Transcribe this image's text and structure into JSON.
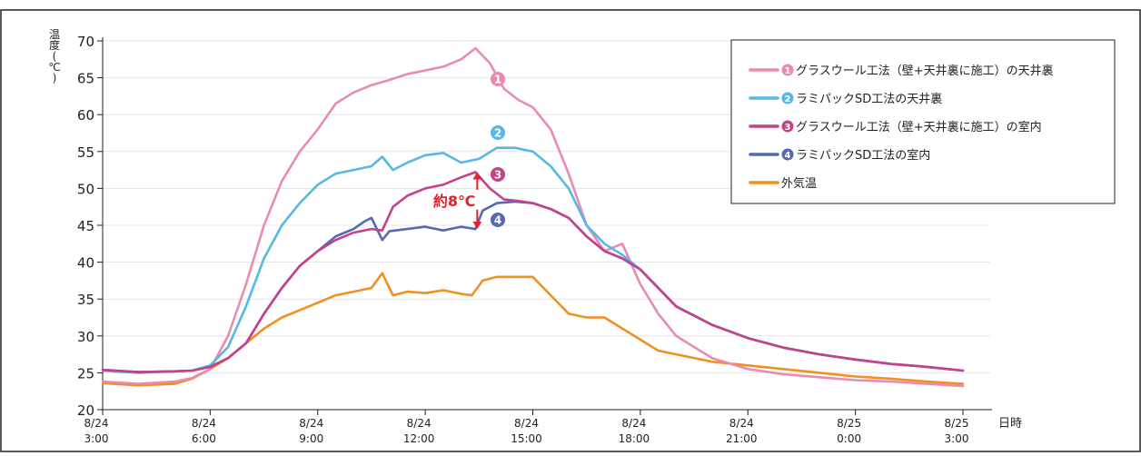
{
  "chart_data": {
    "type": "line",
    "ylabel_chars": [
      "温",
      "度",
      "(",
      "℃",
      ")"
    ],
    "xlabel": "日時",
    "ylim": [
      20,
      70
    ],
    "yticks": [
      20,
      25,
      30,
      35,
      40,
      45,
      50,
      55,
      60,
      65,
      70
    ],
    "xlim": [
      0,
      24
    ],
    "xticks": [
      {
        "x": 0,
        "date": "8/24",
        "time": "3:00"
      },
      {
        "x": 3,
        "date": "8/24",
        "time": "6:00"
      },
      {
        "x": 6,
        "date": "8/24",
        "time": "9:00"
      },
      {
        "x": 9,
        "date": "8/24",
        "time": "12:00"
      },
      {
        "x": 12,
        "date": "8/24",
        "time": "15:00"
      },
      {
        "x": 15,
        "date": "8/24",
        "time": "18:00"
      },
      {
        "x": 18,
        "date": "8/24",
        "time": "21:00"
      },
      {
        "x": 21,
        "date": "8/25",
        "time": "0:00"
      },
      {
        "x": 24,
        "date": "8/25",
        "time": "3:00"
      }
    ],
    "legend_position": "top-right",
    "series": [
      {
        "marker": "❶",
        "name": "グラスウール工法（壁+天井裏に施工）の天井裏",
        "color": "#ea8ab3",
        "x": [
          0,
          1,
          2,
          2.5,
          3,
          3.5,
          4,
          4.5,
          5,
          5.5,
          6,
          6.5,
          7,
          7.5,
          8,
          8.5,
          9,
          9.5,
          10,
          10.4,
          10.8,
          11.2,
          11.6,
          12,
          12.5,
          13,
          13.5,
          14,
          14.5,
          15,
          15.5,
          16,
          17,
          18,
          19,
          20,
          21,
          22,
          23,
          24
        ],
        "values": [
          23.8,
          23.5,
          23.8,
          24.3,
          25.5,
          30,
          37,
          45,
          51,
          55,
          58,
          61.5,
          63,
          64,
          64.7,
          65.5,
          66,
          66.5,
          67.5,
          69,
          67,
          63.5,
          62,
          61,
          58,
          52,
          45,
          41.5,
          42.5,
          37,
          33,
          30,
          27,
          25.5,
          24.8,
          24.4,
          24,
          23.8,
          23.5,
          23.2
        ]
      },
      {
        "marker": "❷",
        "name": "ラミパックSD工法の天井裏",
        "color": "#56b8e6",
        "x": [
          0,
          1,
          2,
          2.5,
          3,
          3.5,
          4,
          4.5,
          5,
          5.5,
          6,
          6.5,
          7,
          7.5,
          7.8,
          8.1,
          8.5,
          9,
          9.5,
          10,
          10.5,
          11,
          11.5,
          12,
          12.5,
          13,
          13.5,
          14,
          14.5,
          15,
          16,
          17,
          18,
          19,
          20,
          21,
          22,
          23,
          24
        ],
        "values": [
          25.3,
          25,
          25.2,
          25.3,
          26,
          28.5,
          34,
          40.5,
          45,
          48,
          50.5,
          52,
          52.5,
          53,
          54.3,
          52.5,
          53.5,
          54.5,
          54.8,
          53.5,
          54,
          55.5,
          55.5,
          55,
          53,
          50,
          45,
          42.5,
          41,
          39,
          34,
          31.5,
          29.7,
          28.4,
          27.5,
          26.8,
          26.2,
          25.8,
          25.3
        ]
      },
      {
        "marker": "❸",
        "name": "グラスウール工法（壁+天井裏に施工）の室内",
        "color": "#c4428a",
        "x": [
          0,
          1,
          2,
          2.5,
          3,
          3.5,
          4,
          4.5,
          5,
          5.5,
          6,
          6.5,
          7,
          7.5,
          7.8,
          8.1,
          8.5,
          9,
          9.5,
          10,
          10.4,
          10.8,
          11.2,
          11.6,
          12,
          12.5,
          13,
          13.5,
          14,
          14.5,
          15,
          16,
          17,
          18,
          19,
          20,
          21,
          22,
          23,
          24
        ],
        "values": [
          25.4,
          25.1,
          25.2,
          25.3,
          25.8,
          27,
          29,
          33,
          36.5,
          39.5,
          41.5,
          43,
          44,
          44.5,
          44.3,
          47.5,
          49,
          50,
          50.5,
          51.5,
          52.2,
          50,
          48.5,
          48.3,
          48,
          47.2,
          46,
          43.5,
          41.5,
          40.5,
          39,
          34,
          31.5,
          29.7,
          28.4,
          27.5,
          26.8,
          26.2,
          25.8,
          25.3
        ]
      },
      {
        "marker": "❹",
        "name": "ラミパックSD工法の室内",
        "color": "#5468b4",
        "x": [
          0,
          1,
          2,
          2.5,
          3,
          3.5,
          4,
          4.5,
          5,
          5.5,
          6,
          6.5,
          7,
          7.3,
          7.5,
          7.8,
          8,
          8.5,
          9,
          9.5,
          10,
          10.4,
          10.6,
          11,
          11.5,
          12,
          12.5,
          13,
          13.5,
          14,
          14.5,
          15,
          16,
          17,
          18,
          19,
          20,
          21,
          22,
          23,
          24
        ],
        "values": [
          25.4,
          25.1,
          25.2,
          25.3,
          25.8,
          27,
          29,
          33,
          36.5,
          39.5,
          41.5,
          43.5,
          44.5,
          45.5,
          46,
          43,
          44.2,
          44.5,
          44.8,
          44.3,
          44.8,
          44.5,
          47,
          48,
          48.2,
          48,
          47.2,
          46,
          43.5,
          41.5,
          40.5,
          39,
          34,
          31.5,
          29.7,
          28.4,
          27.5,
          26.8,
          26.2,
          25.8,
          25.3
        ]
      },
      {
        "marker": "",
        "name": "外気温",
        "color": "#f0901e",
        "x": [
          0,
          1,
          2,
          2.5,
          3,
          3.5,
          4,
          4.5,
          5,
          5.5,
          6,
          6.5,
          7,
          7.5,
          7.8,
          8.1,
          8.5,
          9,
          9.5,
          10,
          10.3,
          10.6,
          11,
          11.5,
          12,
          12.5,
          13,
          13.5,
          14,
          14.5,
          15,
          15.5,
          16,
          17,
          18,
          19,
          20,
          21,
          22,
          23,
          24
        ],
        "values": [
          23.6,
          23.3,
          23.5,
          24.2,
          25.5,
          27,
          29,
          31,
          32.5,
          33.5,
          34.5,
          35.5,
          36,
          36.5,
          38.5,
          35.5,
          36,
          35.8,
          36.2,
          35.7,
          35.5,
          37.5,
          38,
          38,
          38,
          35.5,
          33,
          32.5,
          32.5,
          31,
          29.5,
          28,
          27.5,
          26.5,
          26,
          25.5,
          25,
          24.5,
          24.2,
          23.8,
          23.5
        ]
      }
    ],
    "annotations": {
      "diff_label": "約8℃",
      "diff_x": 10.4,
      "diff_top": 52.2,
      "diff_bottom": 44.5,
      "diff_color": "#e5222b"
    }
  }
}
